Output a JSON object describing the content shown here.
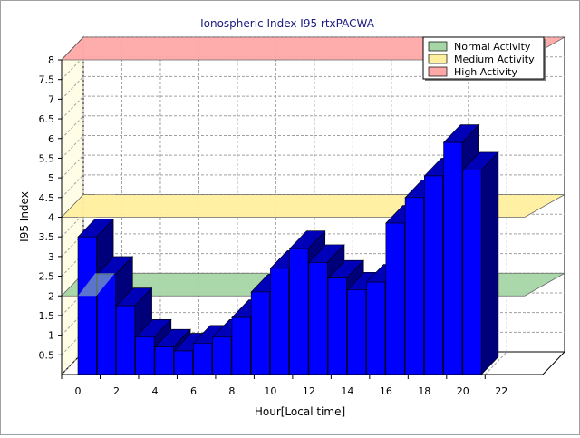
{
  "chart_data": {
    "type": "bar",
    "title": "Ionospheric Index I95 rtxPACWA",
    "xlabel": "Hour[Local time]",
    "ylabel": "I95 Index",
    "x": [
      0,
      1,
      2,
      3,
      4,
      5,
      6,
      7,
      8,
      9,
      10,
      11,
      12,
      13,
      14,
      15,
      16,
      17,
      18,
      19,
      20
    ],
    "values": [
      3.5,
      2.55,
      1.75,
      0.95,
      0.7,
      0.6,
      0.8,
      0.95,
      1.45,
      2.1,
      2.7,
      3.2,
      2.85,
      2.45,
      2.15,
      2.35,
      3.85,
      4.5,
      5.05,
      5.9,
      5.2
    ],
    "xlim": [
      0,
      25
    ],
    "ylim": [
      0,
      8
    ],
    "x_ticks": [
      "0",
      "2",
      "4",
      "6",
      "8",
      "10",
      "12",
      "14",
      "16",
      "18",
      "20",
      "22"
    ],
    "y_ticks": [
      "0.5",
      "1",
      "1.5",
      "2",
      "2.5",
      "3",
      "3.5",
      "4",
      "4.5",
      "5",
      "5.5",
      "6",
      "6.5",
      "7",
      "7.5",
      "8"
    ],
    "grid": true,
    "legend_position": "top-right",
    "bar_color": "#0000ff",
    "bands": [
      {
        "name": "Normal Activity",
        "value": 2.0,
        "color": "#a6d6a6"
      },
      {
        "name": "Medium Activity",
        "value": 4.0,
        "color": "#fff0a0"
      },
      {
        "name": "High Activity",
        "value": 8.0,
        "color": "#ffa8a8"
      }
    ]
  }
}
